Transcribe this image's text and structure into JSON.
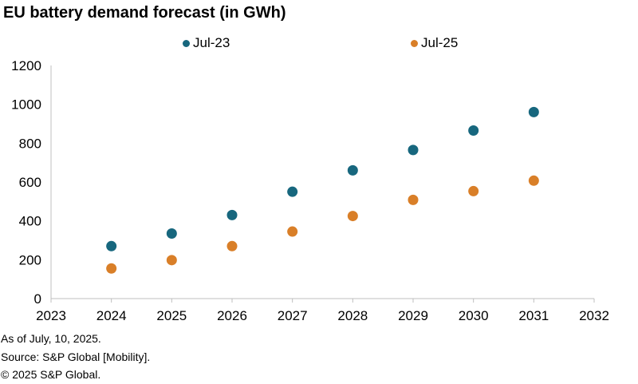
{
  "chart_data": {
    "type": "scatter",
    "title": "EU battery demand forecast (in GWh)",
    "xlabel": "",
    "ylabel": "",
    "xlim": [
      2023,
      2032
    ],
    "ylim": [
      0,
      1200
    ],
    "x_ticks": [
      "2023",
      "2024",
      "2025",
      "2026",
      "2027",
      "2028",
      "2029",
      "2030",
      "2031",
      "2032"
    ],
    "y_ticks": [
      "0",
      "200",
      "400",
      "600",
      "800",
      "1000",
      "1200"
    ],
    "grid": false,
    "legend_position": "top",
    "x": [
      2024,
      2025,
      2026,
      2027,
      2028,
      2029,
      2030,
      2031
    ],
    "series": [
      {
        "name": "Jul-23",
        "color": "#17677e",
        "values": [
          270,
          335,
          430,
          550,
          660,
          765,
          865,
          960
        ]
      },
      {
        "name": "Jul-25",
        "color": "#d97f28",
        "values": [
          155,
          198,
          270,
          345,
          425,
          508,
          553,
          607
        ]
      }
    ]
  },
  "footnotes": {
    "as_of": "As of July, 10, 2025.",
    "source": "Source: S&P Global [Mobility].",
    "copyright": "© 2025 S&P Global."
  },
  "colors": {
    "axis": "#bfbfbf"
  }
}
